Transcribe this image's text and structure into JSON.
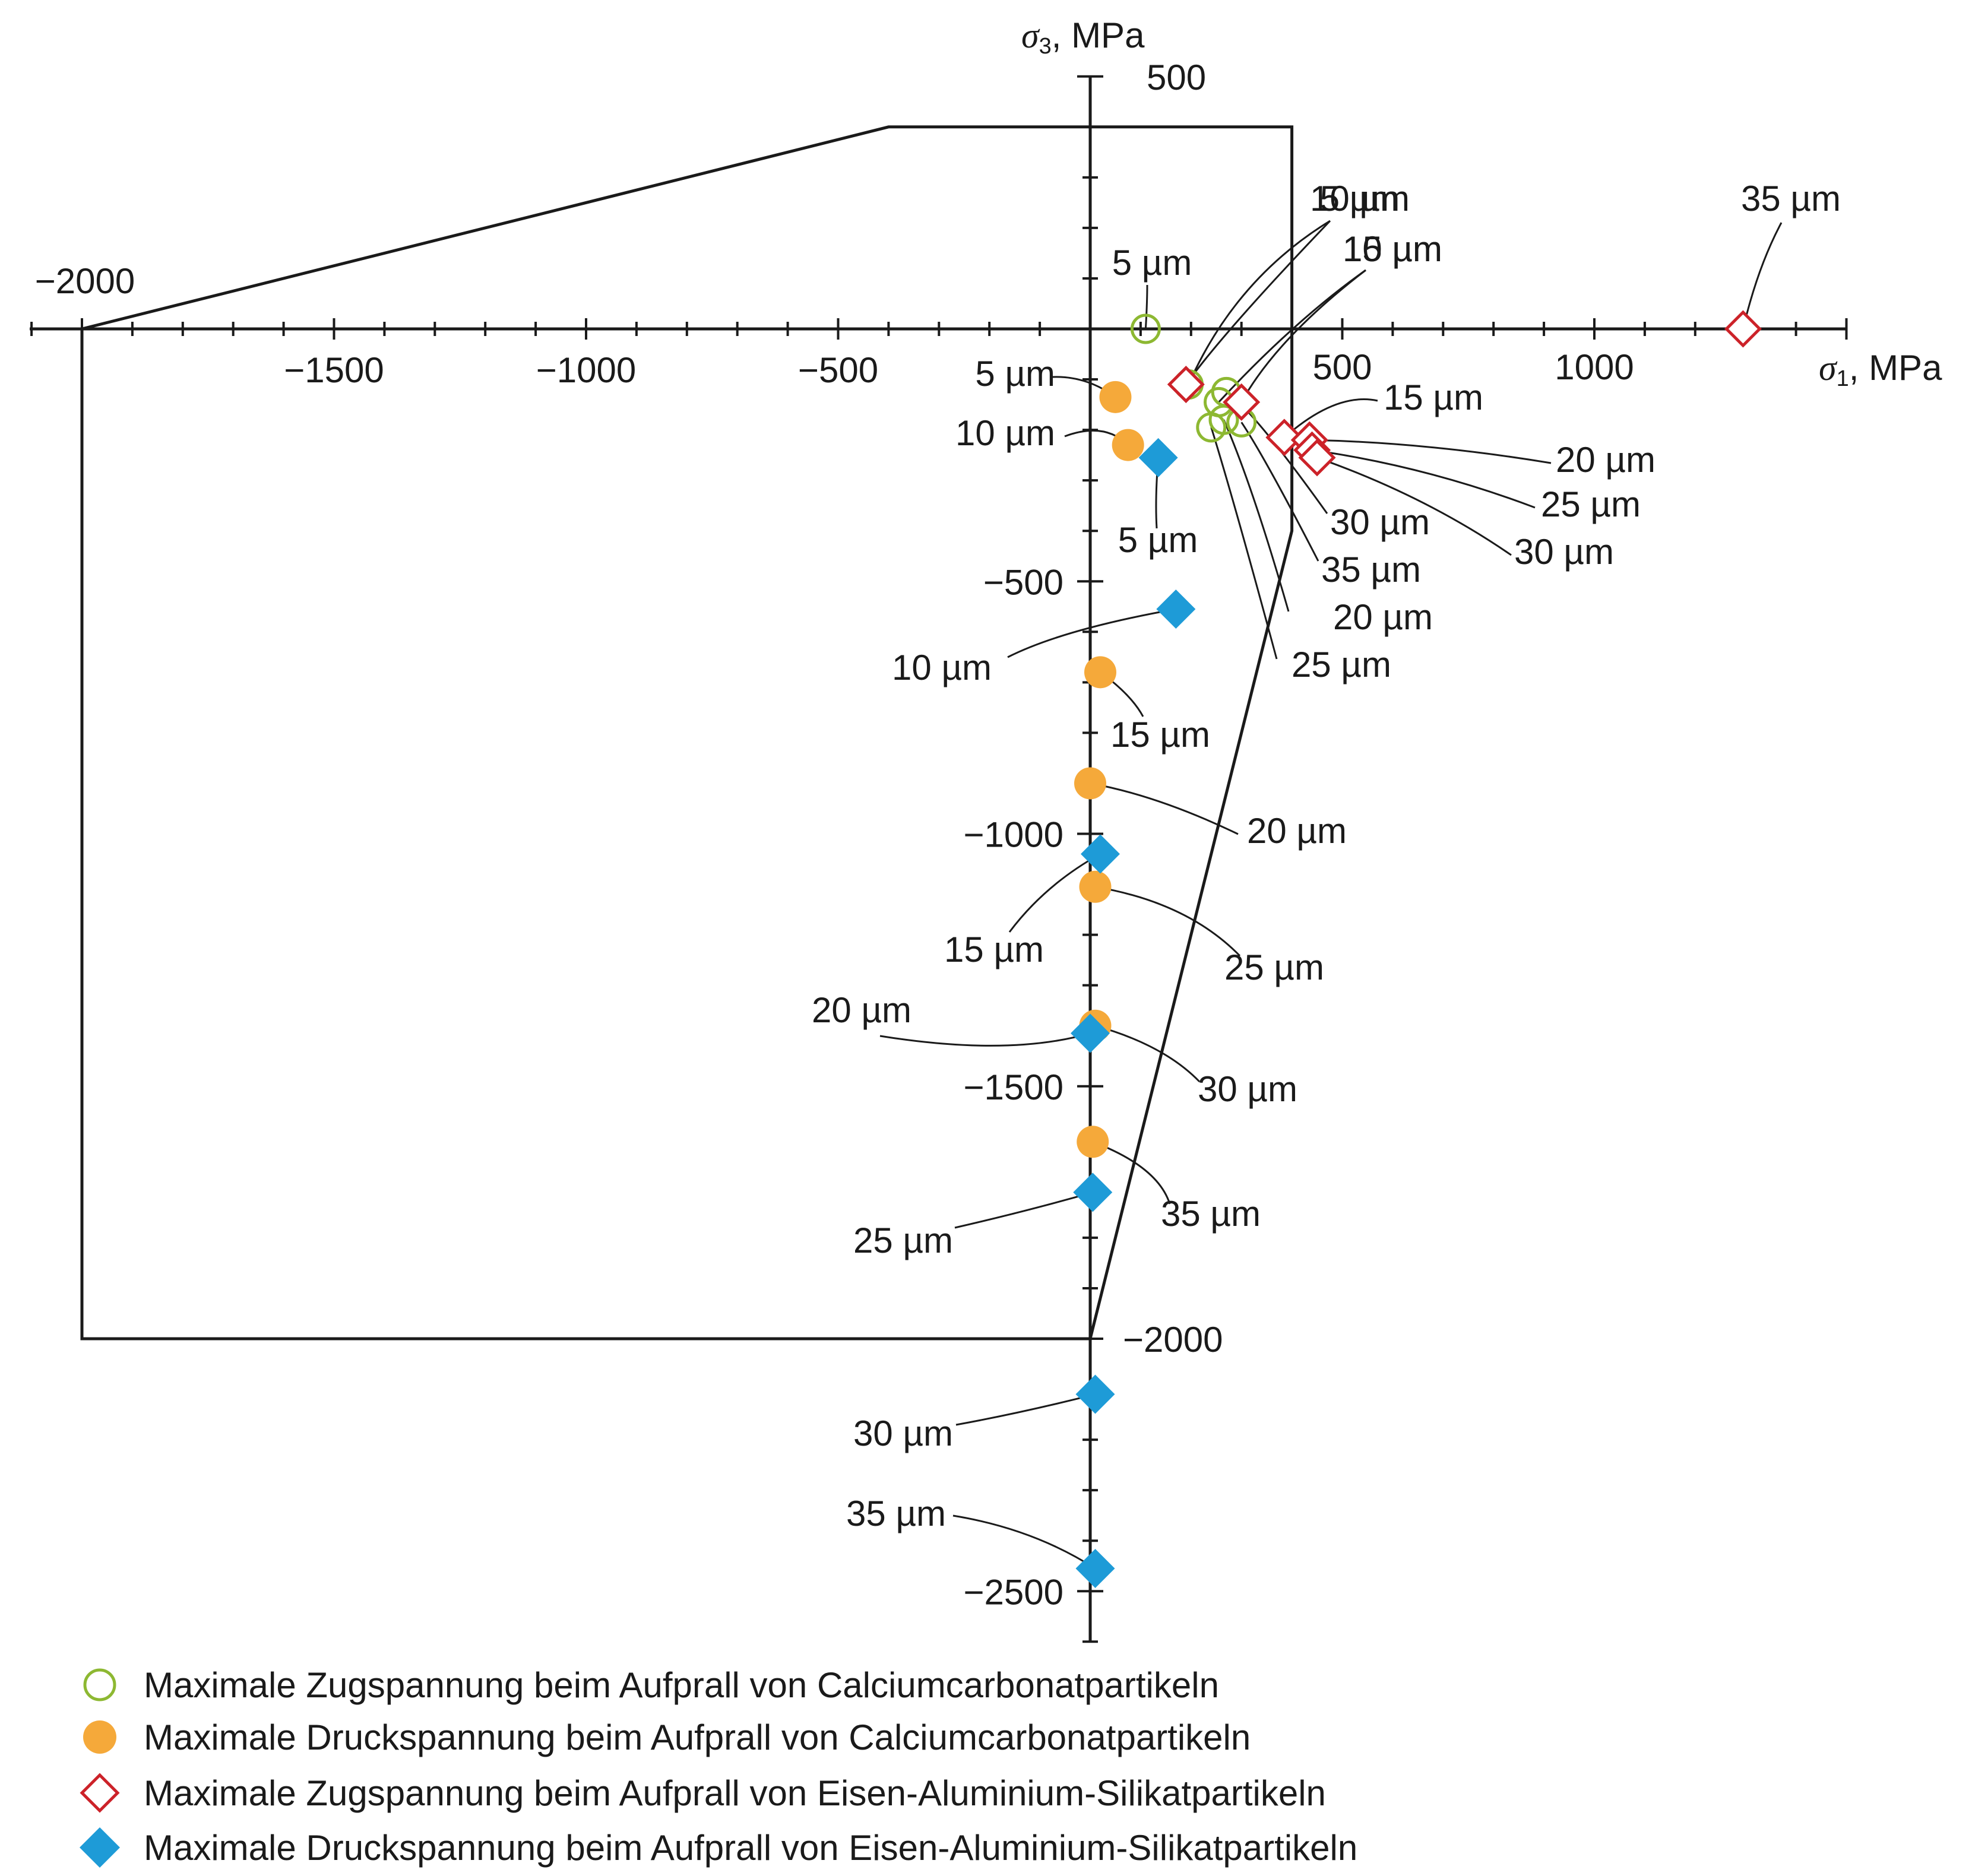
{
  "chart_data": {
    "type": "scatter",
    "title": "",
    "xlabel": {
      "symbol": "σ",
      "sub": "1",
      "unit": ", MPa"
    },
    "ylabel": {
      "symbol": "σ",
      "sub": "3",
      "unit": ", MPa"
    },
    "xlim": [
      -2100,
      1500
    ],
    "ylim": [
      -2600,
      500
    ],
    "x_ticks": [
      {
        "value": -2000,
        "label": "−2000"
      },
      {
        "value": -1500,
        "label": "−1500"
      },
      {
        "value": -1000,
        "label": "−1000"
      },
      {
        "value": -500,
        "label": "−500"
      },
      {
        "value": 500,
        "label": "500"
      },
      {
        "value": 1000,
        "label": "1000"
      }
    ],
    "y_ticks": [
      {
        "value": 500,
        "label": "500"
      },
      {
        "value": -500,
        "label": "−500"
      },
      {
        "value": -1000,
        "label": "−1000"
      },
      {
        "value": -1500,
        "label": "−1500"
      },
      {
        "value": -2000,
        "label": "−2000"
      },
      {
        "value": -2500,
        "label": "−2500"
      }
    ],
    "grid": false,
    "envelope": [
      [
        -2000,
        0
      ],
      [
        -400,
        400
      ],
      [
        400,
        400
      ],
      [
        400,
        -400
      ],
      [
        0,
        -2000
      ],
      [
        -2000,
        -2000
      ],
      [
        -2000,
        0
      ]
    ],
    "series": [
      {
        "name": "Maximale Zugspannung beim Aufprall von Calciumcarbonatpartikeln",
        "marker": "circle-open",
        "color": "#8db832",
        "points": [
          {
            "x": 110,
            "y": 0,
            "label": "5 µm"
          },
          {
            "x": 195,
            "y": -110,
            "label": "10 µm"
          },
          {
            "x": 255,
            "y": -145,
            "label": "15 µm"
          },
          {
            "x": 265,
            "y": -180,
            "label": "20 µm"
          },
          {
            "x": 240,
            "y": -195,
            "label": "25 µm"
          },
          {
            "x": 270,
            "y": -125,
            "label": "30 µm"
          },
          {
            "x": 300,
            "y": -185,
            "label": "35 µm"
          }
        ]
      },
      {
        "name": "Maximale Druckspannung beim Aufprall von Calciumcarbonatpartikeln",
        "marker": "circle-filled",
        "color": "#f5a93a",
        "points": [
          {
            "x": 50,
            "y": -135,
            "label": "5 µm"
          },
          {
            "x": 75,
            "y": -230,
            "label": "10 µm"
          },
          {
            "x": 20,
            "y": -680,
            "label": "15 µm"
          },
          {
            "x": 0,
            "y": -900,
            "label": "20 µm"
          },
          {
            "x": 10,
            "y": -1105,
            "label": "25 µm"
          },
          {
            "x": 10,
            "y": -1380,
            "label": "30 µm"
          },
          {
            "x": 5,
            "y": -1610,
            "label": "35 µm"
          }
        ]
      },
      {
        "name": "Maximale Zugspannung beim Aufprall von Eisen-Aluminium-Silikatpartikeln",
        "marker": "diamond-open",
        "color": "#cc2229",
        "points": [
          {
            "x": 1295,
            "y": 0,
            "label": "35 µm"
          },
          {
            "x": 190,
            "y": -110,
            "label": "5 µm"
          },
          {
            "x": 300,
            "y": -145,
            "label": "10 µm"
          },
          {
            "x": 385,
            "y": -215,
            "label": "15 µm"
          },
          {
            "x": 435,
            "y": -220,
            "label": "20 µm"
          },
          {
            "x": 440,
            "y": -240,
            "label": "25 µm"
          },
          {
            "x": 450,
            "y": -255,
            "label": "30 µm"
          }
        ]
      },
      {
        "name": "Maximale Druckspannung beim Aufprall von Eisen-Aluminium-Silikatpartikeln",
        "marker": "diamond-filled",
        "color": "#1e9bd7",
        "points": [
          {
            "x": 135,
            "y": -255,
            "label": "5 µm"
          },
          {
            "x": 170,
            "y": -555,
            "label": "10 µm"
          },
          {
            "x": 20,
            "y": -1040,
            "label": "15 µm"
          },
          {
            "x": 0,
            "y": -1395,
            "label": "20 µm"
          },
          {
            "x": 5,
            "y": -1710,
            "label": "25 µm"
          },
          {
            "x": 10,
            "y": -2110,
            "label": "30 µm"
          },
          {
            "x": 10,
            "y": -2455,
            "label": "35 µm"
          }
        ]
      }
    ]
  }
}
